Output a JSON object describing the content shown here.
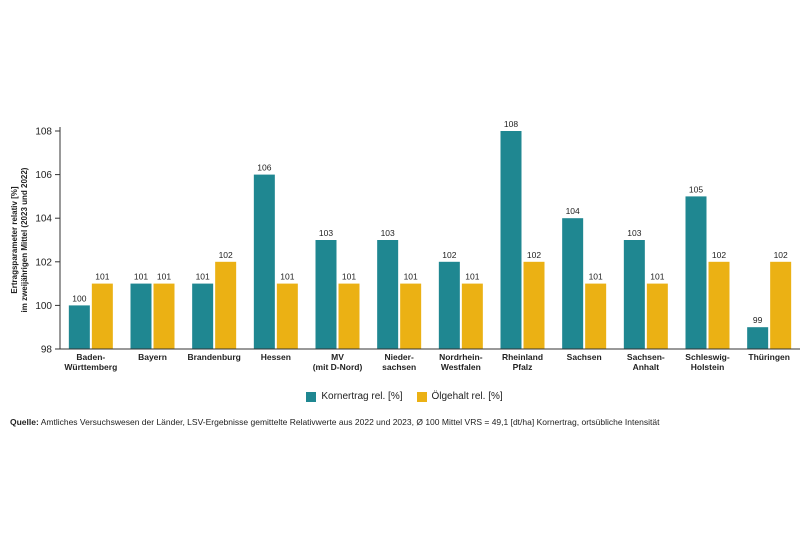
{
  "chart_data": {
    "type": "bar",
    "ylabel": [
      "Ertragsparameter relativ [%]",
      "im zweijährigen Mittel (2023 und 2022)"
    ],
    "ylim": [
      98,
      108
    ],
    "yticks": [
      98,
      100,
      102,
      104,
      106,
      108
    ],
    "categories": [
      [
        "Baden-",
        "Württemberg"
      ],
      [
        "Bayern"
      ],
      [
        "Brandenburg"
      ],
      [
        "Hessen"
      ],
      [
        "MV",
        "(mit D-Nord)"
      ],
      [
        "Nieder-",
        "sachsen"
      ],
      [
        "Nordrhein-",
        "Westfalen"
      ],
      [
        "Rheinland",
        "Pfalz"
      ],
      [
        "Sachsen"
      ],
      [
        "Sachsen-",
        "Anhalt"
      ],
      [
        "Schleswig-",
        "Holstein"
      ],
      [
        "Thüringen"
      ]
    ],
    "series": [
      {
        "name": "Kornertrag rel. [%]",
        "color": "#1f8791",
        "values": [
          100,
          101,
          101,
          106,
          103,
          103,
          102,
          108,
          104,
          103,
          105,
          99
        ]
      },
      {
        "name": "Ölgehalt rel. [%]",
        "color": "#ebb114",
        "values": [
          101,
          101,
          102,
          101,
          101,
          101,
          101,
          102,
          101,
          101,
          102,
          102
        ]
      }
    ],
    "grid": false,
    "legend_position": "bottom"
  },
  "source": {
    "label": "Quelle:",
    "text": " Amtliches Versuchswesen der Länder, LSV-Ergebnisse gemittelte Relativwerte aus 2022 und 2023, Ø 100 Mittel VRS = 49,1 [dt/ha] Kornertrag, ortsübliche Intensität"
  }
}
